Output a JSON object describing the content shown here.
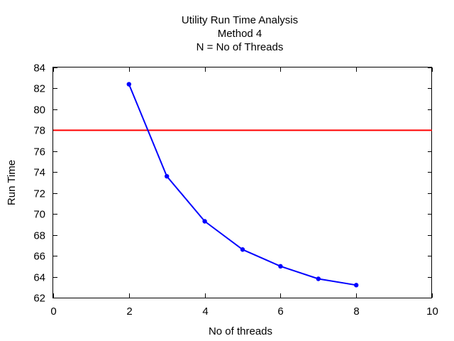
{
  "chart_data": {
    "type": "line",
    "title_lines": [
      "Utility Run Time Analysis",
      "Method 4",
      "N = No of Threads"
    ],
    "xlabel": "No of threads",
    "ylabel": "Run Time",
    "xlim": [
      0,
      10
    ],
    "ylim": [
      62,
      84
    ],
    "x_ticks": [
      0,
      2,
      4,
      6,
      8,
      10
    ],
    "y_ticks": [
      62,
      64,
      66,
      68,
      70,
      72,
      74,
      76,
      78,
      80,
      82,
      84
    ],
    "grid": false,
    "series": [
      {
        "x": [
          2,
          3,
          4,
          5,
          6,
          7,
          8
        ],
        "values": [
          82.4,
          73.6,
          69.3,
          66.6,
          65.0,
          63.8,
          63.2
        ],
        "color": "#0000ff",
        "marker": "point"
      }
    ],
    "reference_line": {
      "y": 78,
      "color": "#ff0000"
    }
  }
}
